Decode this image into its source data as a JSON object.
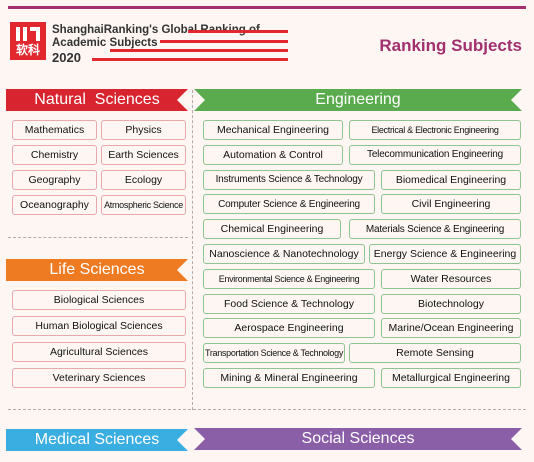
{
  "header": {
    "logo_text": "软科",
    "brand_line1": "ShanghaiRanking's Global Ranking of",
    "brand_line2": "Academic Subjects",
    "brand_year": "2020",
    "page_title": "Ranking Subjects"
  },
  "colors": {
    "accent": "#a2306f",
    "natural": "#d8242f",
    "engineering": "#5aab4d",
    "life": "#ee7a21",
    "medical": "#3aaee0",
    "social": "#8b5fa8"
  },
  "natural_sciences": {
    "title": "Natural  Sciences",
    "items": [
      "Mathematics",
      "Physics",
      "Chemistry",
      "Earth Sciences",
      "Geography",
      "Ecology",
      "Oceanography",
      "Atmospheric Science"
    ]
  },
  "engineering": {
    "title": "Engineering",
    "items": [
      "Mechanical Engineering",
      "Electrical & Electronic Engineering",
      "Automation & Control",
      "Telecommunication Engineering",
      "Instruments Science & Technology",
      "Biomedical Engineering",
      "Computer Science & Engineering",
      "Civil Engineering",
      "Chemical Engineering",
      "Materials Science & Engineering",
      "Nanoscience & Nanotechnology",
      "Energy Science & Engineering",
      "Environmental Science & Engineering",
      "Water Resources",
      "Food Science & Technology",
      "Biotechnology",
      "Aerospace Engineering",
      "Marine/Ocean Engineering",
      "Transportation Science & Technology",
      "Remote Sensing",
      "Mining & Mineral Engineering",
      "Metallurgical Engineering"
    ]
  },
  "life_sciences": {
    "title": "Life Sciences",
    "items": [
      "Biological Sciences",
      "Human Biological Sciences",
      "Agricultural Sciences",
      "Veterinary Sciences"
    ]
  },
  "medical_sciences": {
    "title": "Medical Sciences"
  },
  "social_sciences": {
    "title": "Social Sciences"
  }
}
